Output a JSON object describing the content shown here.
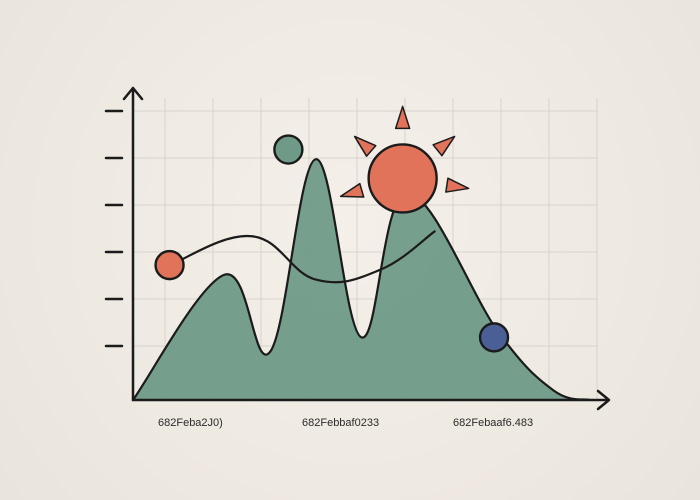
{
  "chart_data": {
    "type": "area",
    "title": "",
    "xlabel": "",
    "ylabel": "",
    "x_tick_labels": [
      "682Feba2J0)",
      "682Febbaf0233",
      "682Febaaf6.483"
    ],
    "y_tick_count": 6,
    "ylim": [
      0,
      6
    ],
    "grid": true,
    "legend": "none",
    "series": [
      {
        "kind": "area",
        "color": "#6f9a88",
        "x": [
          0,
          1,
          1.5,
          2,
          2.5,
          3,
          4,
          4.6,
          5
        ],
        "values": [
          0,
          2.6,
          1.0,
          5.0,
          1.3,
          4.3,
          1.4,
          0.2,
          0
        ]
      },
      {
        "kind": "line",
        "color": "#1b1b1b",
        "x": [
          0.4,
          1.3,
          2.0,
          2.7,
          3.3
        ],
        "values": [
          2.8,
          3.4,
          2.5,
          2.7,
          3.5
        ]
      }
    ],
    "markers": [
      {
        "label": "",
        "x": 0.4,
        "value": 2.8,
        "color": "#e0735a"
      },
      {
        "label": "",
        "x": 1.7,
        "value": 5.2,
        "color": "#6f9a88"
      },
      {
        "label": "",
        "x": 2.95,
        "value": 4.6,
        "color": "#e0735a"
      },
      {
        "label": "",
        "x": 3.95,
        "value": 1.3,
        "color": "#4a5f96"
      }
    ],
    "colors": {
      "area": "#6f9a88",
      "line": "#1b1b1b",
      "accent": "#e0735a",
      "marker_blue": "#4a5f96",
      "grid": "#d8d3cb",
      "axis": "#1b1b1b"
    }
  }
}
